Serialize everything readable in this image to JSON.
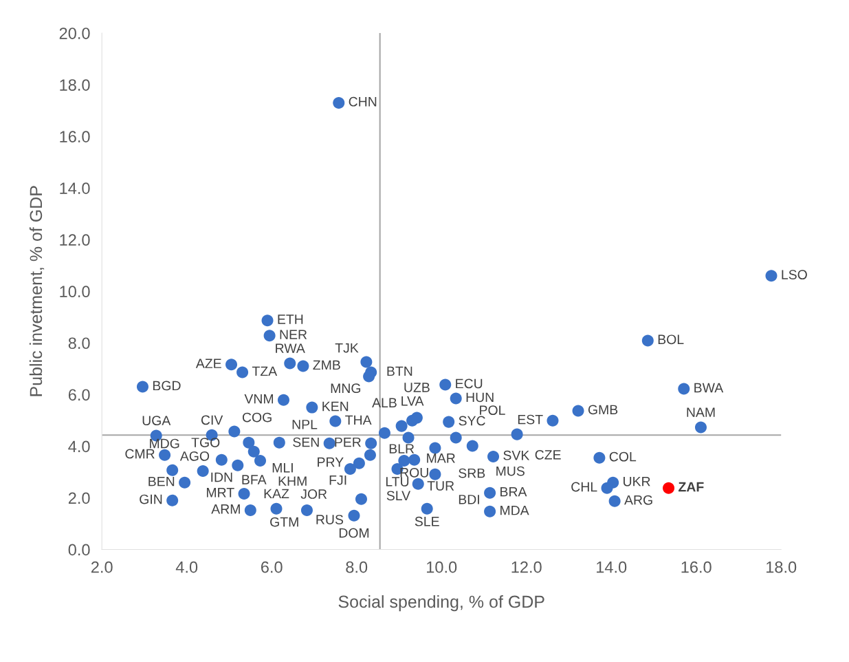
{
  "chart_data": {
    "type": "scatter",
    "xlabel": "Social spending, % of GDP",
    "ylabel": "Public invetment, % of GDP",
    "xlim": [
      2.0,
      18.0
    ],
    "ylim": [
      0.0,
      20.0
    ],
    "xticks": [
      {
        "value": 2,
        "label": "2.0"
      },
      {
        "value": 4,
        "label": "4.0"
      },
      {
        "value": 6,
        "label": "6.0"
      },
      {
        "value": 8,
        "label": "8.0"
      },
      {
        "value": 10,
        "label": "10.0"
      },
      {
        "value": 12,
        "label": "12.0"
      },
      {
        "value": 14,
        "label": "14.0"
      },
      {
        "value": 16,
        "label": "16.0"
      },
      {
        "value": 18,
        "label": "18.0"
      }
    ],
    "yticks": [
      {
        "value": 0,
        "label": "0.0"
      },
      {
        "value": 2,
        "label": "2.0"
      },
      {
        "value": 4,
        "label": "4.0"
      },
      {
        "value": 6,
        "label": "6.0"
      },
      {
        "value": 8,
        "label": "8.0"
      },
      {
        "value": 10,
        "label": "10.0"
      },
      {
        "value": 12,
        "label": "12.0"
      },
      {
        "value": 14,
        "label": "14.0"
      },
      {
        "value": 16,
        "label": "16.0"
      },
      {
        "value": 18,
        "label": "18.0"
      },
      {
        "value": 20,
        "label": "20.0"
      }
    ],
    "grid": false,
    "legend": false,
    "marker": "circle",
    "ref_lines": [
      {
        "axis": "x",
        "value": 8.55,
        "color": "#a6a6a6"
      },
      {
        "axis": "y",
        "value": 4.43,
        "color": "#a6a6a6"
      }
    ],
    "series": [
      {
        "color": "#3a72c8",
        "x": [
          7.58,
          17.77,
          5.9,
          5.95,
          14.86,
          5.05,
          5.31,
          6.43,
          6.74,
          8.23,
          8.34,
          8.29,
          2.96,
          10.09,
          15.71,
          10.34,
          6.28,
          6.95,
          13.22,
          7.5,
          12.62,
          16.11,
          9.31,
          9.42,
          9.06,
          8.66,
          9.22,
          10.17,
          10.34,
          9.85,
          10.73,
          11.22,
          11.78,
          8.34,
          8.32,
          8.06,
          7.85,
          7.36,
          8.96,
          9.12,
          9.36,
          9.85,
          9.45,
          11.14,
          11.14,
          9.66,
          8.11,
          7.94,
          6.83,
          6.11,
          5.5,
          5.35,
          3.66,
          3.95,
          3.66,
          3.48,
          3.28,
          4.59,
          5.12,
          5.46,
          5.58,
          5.73,
          4.82,
          5.2,
          4.38,
          6.18,
          13.72,
          14.04,
          13.9,
          14.08,
          15.35
        ],
        "values": [
          17.3,
          10.6,
          8.87,
          8.28,
          8.09,
          7.16,
          6.86,
          7.21,
          7.1,
          7.26,
          6.86,
          6.7,
          6.3,
          6.38,
          6.22,
          5.85,
          5.79,
          5.5,
          5.37,
          4.97,
          4.99,
          4.73,
          4.99,
          5.1,
          4.78,
          4.51,
          4.33,
          4.94,
          4.33,
          3.93,
          4.01,
          3.6,
          4.46,
          4.11,
          3.66,
          3.34,
          3.12,
          4.11,
          3.12,
          3.44,
          3.47,
          2.91,
          2.54,
          2.19,
          1.47,
          1.58,
          1.95,
          1.31,
          1.52,
          1.58,
          1.52,
          2.16,
          1.9,
          2.59,
          3.07,
          3.66,
          4.41,
          4.43,
          4.57,
          4.14,
          3.79,
          3.44,
          3.47,
          3.26,
          3.04,
          4.14,
          3.55,
          2.59,
          2.38,
          1.87,
          2.38
        ],
        "colors": [
          "#3a72c8",
          "#3a72c8",
          "#3a72c8",
          "#3a72c8",
          "#3a72c8",
          "#3a72c8",
          "#3a72c8",
          "#3a72c8",
          "#3a72c8",
          "#3a72c8",
          "#3a72c8",
          "#3a72c8",
          "#3a72c8",
          "#3a72c8",
          "#3a72c8",
          "#3a72c8",
          "#3a72c8",
          "#3a72c8",
          "#3a72c8",
          "#3a72c8",
          "#3a72c8",
          "#3a72c8",
          "#3a72c8",
          "#3a72c8",
          "#3a72c8",
          "#3a72c8",
          "#3a72c8",
          "#3a72c8",
          "#3a72c8",
          "#3a72c8",
          "#3a72c8",
          "#3a72c8",
          "#3a72c8",
          "#3a72c8",
          "#3a72c8",
          "#3a72c8",
          "#3a72c8",
          "#3a72c8",
          "#3a72c8",
          "#3a72c8",
          "#3a72c8",
          "#3a72c8",
          "#3a72c8",
          "#3a72c8",
          "#3a72c8",
          "#3a72c8",
          "#3a72c8",
          "#3a72c8",
          "#3a72c8",
          "#3a72c8",
          "#3a72c8",
          "#3a72c8",
          "#3a72c8",
          "#3a72c8",
          "#3a72c8",
          "#3a72c8",
          "#3a72c8",
          "#3a72c8",
          "#3a72c8",
          "#3a72c8",
          "#3a72c8",
          "#3a72c8",
          "#3a72c8",
          "#3a72c8",
          "#3a72c8",
          "#3a72c8",
          "#3a72c8",
          "#3a72c8",
          "#3a72c8",
          "#3a72c8",
          "#ff0000"
        ]
      }
    ],
    "annotations": [
      {
        "text": "CHN",
        "x": 7.58,
        "y": 17.3
      },
      {
        "text": "LSO",
        "x": 17.77,
        "y": 10.6
      },
      {
        "text": "ETH",
        "x": 5.9,
        "y": 8.87
      },
      {
        "text": "NER",
        "x": 5.95,
        "y": 8.28
      },
      {
        "text": "BOL",
        "x": 14.86,
        "y": 8.09
      },
      {
        "text": "AZE",
        "x": 5.05,
        "y": 7.16
      },
      {
        "text": "TZA",
        "x": 5.31,
        "y": 6.86
      },
      {
        "text": "RWA",
        "x": 6.43,
        "y": 7.21
      },
      {
        "text": "ZMB",
        "x": 6.74,
        "y": 7.1
      },
      {
        "text": "TJK",
        "x": 8.23,
        "y": 7.26
      },
      {
        "text": "BTN",
        "x": 8.34,
        "y": 6.86
      },
      {
        "text": "MNG",
        "x": 8.29,
        "y": 6.7
      },
      {
        "text": "BGD",
        "x": 2.96,
        "y": 6.3
      },
      {
        "text": "ECU",
        "x": 10.09,
        "y": 6.38
      },
      {
        "text": "BWA",
        "x": 15.71,
        "y": 6.22
      },
      {
        "text": "HUN",
        "x": 10.34,
        "y": 5.85
      },
      {
        "text": "VNM",
        "x": 6.28,
        "y": 5.79
      },
      {
        "text": "KEN",
        "x": 6.95,
        "y": 5.5
      },
      {
        "text": "GMB",
        "x": 13.22,
        "y": 5.37
      },
      {
        "text": "THA",
        "x": 7.5,
        "y": 4.97
      },
      {
        "text": "EST",
        "x": 12.62,
        "y": 4.99
      },
      {
        "text": "NAM",
        "x": 16.11,
        "y": 4.73
      },
      {
        "text": "LVA",
        "x": 9.31,
        "y": 4.99
      },
      {
        "text": "UZB",
        "x": 9.42,
        "y": 5.1
      },
      {
        "text": "BLR",
        "x": 9.06,
        "y": 4.78
      },
      {
        "text": "ALB",
        "x": 8.66,
        "y": 4.51
      },
      {
        "text": "MAR",
        "x": 9.22,
        "y": 4.33
      },
      {
        "text": "SYC",
        "x": 10.17,
        "y": 4.94
      },
      {
        "text": "POL",
        "x": 10.34,
        "y": 4.33
      },
      {
        "text": "SRB",
        "x": 9.85,
        "y": 3.93
      },
      {
        "text": "MUS",
        "x": 10.73,
        "y": 4.01
      },
      {
        "text": "SVK",
        "x": 11.22,
        "y": 3.6
      },
      {
        "text": "CZE",
        "x": 11.78,
        "y": 4.46
      },
      {
        "text": "PER",
        "x": 8.34,
        "y": 4.11
      },
      {
        "text": "FJI",
        "x": 8.32,
        "y": 3.66
      },
      {
        "text": "PRY",
        "x": 8.06,
        "y": 3.34
      },
      {
        "text": "JOR",
        "x": 7.85,
        "y": 3.12
      },
      {
        "text": "SEN",
        "x": 7.36,
        "y": 4.11
      },
      {
        "text": "LTU",
        "x": 8.96,
        "y": 3.12
      },
      {
        "text": "TUR",
        "x": 9.12,
        "y": 3.44
      },
      {
        "text": "ROU",
        "x": 9.36,
        "y": 3.47
      },
      {
        "text": "BDI",
        "x": 9.85,
        "y": 2.91
      },
      {
        "text": "SLV",
        "x": 9.45,
        "y": 2.54
      },
      {
        "text": "BRA",
        "x": 11.14,
        "y": 2.19
      },
      {
        "text": "MDA",
        "x": 11.14,
        "y": 1.47
      },
      {
        "text": "SLE",
        "x": 9.66,
        "y": 1.58
      },
      {
        "text": "RUS",
        "x": 8.11,
        "y": 1.95
      },
      {
        "text": "DOM",
        "x": 7.94,
        "y": 1.31
      },
      {
        "text": "GTM",
        "x": 6.83,
        "y": 1.52
      },
      {
        "text": "KAZ",
        "x": 6.11,
        "y": 1.58
      },
      {
        "text": "ARM",
        "x": 5.5,
        "y": 1.52
      },
      {
        "text": "MRT",
        "x": 5.35,
        "y": 2.16
      },
      {
        "text": "GIN",
        "x": 3.66,
        "y": 1.9
      },
      {
        "text": "BEN",
        "x": 3.95,
        "y": 2.59
      },
      {
        "text": "AGO",
        "x": 3.66,
        "y": 3.07
      },
      {
        "text": "CMR",
        "x": 3.48,
        "y": 3.66
      },
      {
        "text": "UGA",
        "x": 3.28,
        "y": 4.41
      },
      {
        "text": "CIV",
        "x": 4.59,
        "y": 4.43
      },
      {
        "text": "COG",
        "x": 5.12,
        "y": 4.57
      },
      {
        "text": "MLI",
        "x": 5.46,
        "y": 4.14
      },
      {
        "text": "BFA",
        "x": 5.58,
        "y": 3.79
      },
      {
        "text": "KHM",
        "x": 5.73,
        "y": 3.44
      },
      {
        "text": "IDN",
        "x": 4.82,
        "y": 3.47
      },
      {
        "text": "TGO",
        "x": 5.2,
        "y": 3.26
      },
      {
        "text": "MDG",
        "x": 4.38,
        "y": 3.04
      },
      {
        "text": "NPL",
        "x": 6.18,
        "y": 4.14
      },
      {
        "text": "COL",
        "x": 13.72,
        "y": 3.55
      },
      {
        "text": "UKR",
        "x": 14.04,
        "y": 2.59
      },
      {
        "text": "CHL",
        "x": 13.9,
        "y": 2.38
      },
      {
        "text": "ARG",
        "x": 14.08,
        "y": 1.87
      },
      {
        "text": "ZAF",
        "x": 15.35,
        "y": 2.38
      }
    ]
  }
}
